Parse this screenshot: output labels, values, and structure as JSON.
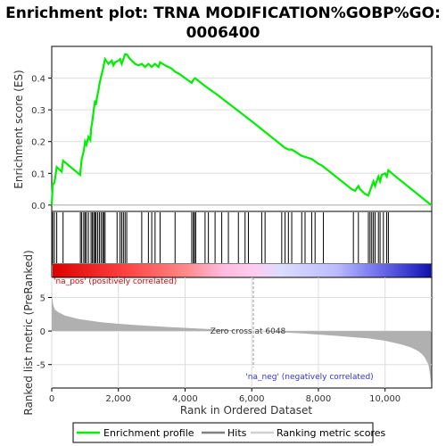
{
  "chart_data": {
    "type": "line",
    "title_line1": "Enrichment plot: TRNA MODIFICATION%GOBP%GO:",
    "title_line2": "0006400",
    "es_panel": {
      "ylabel": "Enrichment score (ES)",
      "xlim": [
        0,
        11400
      ],
      "ylim": [
        -0.02,
        0.5
      ],
      "yticks": [
        "0.0",
        "0.1",
        "0.2",
        "0.3",
        "0.4"
      ],
      "ytick_values": [
        0.0,
        0.1,
        0.2,
        0.3,
        0.4
      ],
      "series": [
        {
          "name": "Enrichment profile",
          "color": "#00ee00",
          "x": [
            0,
            30,
            80,
            150,
            300,
            340,
            850,
            900,
            960,
            1000,
            1040,
            1100,
            1160,
            1180,
            1220,
            1260,
            1300,
            1320,
            1360,
            1400,
            1430,
            1480,
            1530,
            1560,
            1600,
            1700,
            1800,
            1850,
            1900,
            2000,
            2050,
            2100,
            2150,
            2200,
            2250,
            2350,
            2500,
            2600,
            2700,
            2800,
            2900,
            3000,
            3100,
            3200,
            3250,
            3400,
            3600,
            3700,
            3800,
            4000,
            4200,
            4250,
            4300,
            4600,
            5000,
            6048,
            7000,
            7100,
            7200,
            7500,
            7800,
            8000,
            8100,
            9000,
            9100,
            9200,
            9250,
            9300,
            9400,
            9500,
            9600,
            9650,
            9700,
            9800,
            9850,
            9900,
            10000,
            10050,
            10100,
            10200,
            11380
          ],
          "y": [
            0.0,
            0.065,
            0.07,
            0.12,
            0.105,
            0.14,
            0.095,
            0.145,
            0.17,
            0.2,
            0.19,
            0.215,
            0.205,
            0.24,
            0.265,
            0.3,
            0.33,
            0.315,
            0.34,
            0.36,
            0.38,
            0.405,
            0.425,
            0.44,
            0.46,
            0.445,
            0.455,
            0.44,
            0.45,
            0.455,
            0.46,
            0.445,
            0.46,
            0.475,
            0.475,
            0.46,
            0.445,
            0.44,
            0.445,
            0.435,
            0.445,
            0.435,
            0.445,
            0.435,
            0.45,
            0.44,
            0.43,
            0.42,
            0.415,
            0.4,
            0.385,
            0.395,
            0.4,
            0.375,
            0.345,
            0.26,
            0.18,
            0.175,
            0.175,
            0.155,
            0.145,
            0.13,
            0.125,
            0.05,
            0.045,
            0.06,
            0.05,
            0.045,
            0.035,
            0.03,
            0.06,
            0.075,
            0.06,
            0.09,
            0.075,
            0.095,
            0.1,
            0.09,
            0.11,
            0.1,
            0.0
          ]
        }
      ]
    },
    "hits": {
      "name": "Hits",
      "color": "#000000",
      "positions": [
        30,
        80,
        150,
        340,
        860,
        900,
        960,
        1000,
        1040,
        1100,
        1180,
        1220,
        1260,
        1300,
        1330,
        1380,
        1430,
        1480,
        1530,
        1560,
        1600,
        1960,
        2050,
        2100,
        2150,
        2200,
        2250,
        2700,
        2900,
        3000,
        3100,
        3250,
        3700,
        4200,
        4250,
        4280,
        4320,
        4600,
        4700,
        4900,
        5100,
        5300,
        5600,
        5800,
        5900,
        6300,
        6400,
        6900,
        7000,
        7100,
        7200,
        7500,
        7600,
        7800,
        7900,
        8150,
        9050,
        9200,
        9500,
        9550,
        9600,
        9650,
        9700,
        9800,
        9850,
        9950,
        10050,
        10100
      ]
    },
    "rank_panel": {
      "ylabel": "Ranked list metric (PreRanked)",
      "xlabel": "Rank in Ordered Dataset",
      "xlim": [
        0,
        11400
      ],
      "ylim": [
        -8.5,
        8
      ],
      "yticks": [
        "5",
        "0",
        "-5"
      ],
      "ytick_values": [
        5,
        0,
        -5
      ],
      "xticks": [
        "0",
        "2,000",
        "4,000",
        "6,000",
        "8,000",
        "10,000"
      ],
      "xtick_values": [
        0,
        2000,
        4000,
        6000,
        8000,
        10000
      ],
      "metric_x": [
        0,
        10,
        50,
        100,
        200,
        400,
        800,
        1500,
        2500,
        3500,
        4500,
        5500,
        6048,
        6500,
        7500,
        8500,
        9500,
        10000,
        10500,
        10800,
        11000,
        11100,
        11200,
        11300,
        11350,
        11380
      ],
      "metric_y": [
        7.0,
        5.0,
        3.8,
        3.2,
        2.8,
        2.3,
        1.8,
        1.3,
        0.9,
        0.6,
        0.35,
        0.1,
        0.0,
        -0.1,
        -0.35,
        -0.7,
        -1.1,
        -1.45,
        -2.0,
        -2.5,
        -3.0,
        -3.4,
        -4.0,
        -5.0,
        -6.5,
        -8.0
      ],
      "pos_label": "'na_pos' (positively correlated)",
      "neg_label": "'na_neg' (negatively correlated)",
      "zero_cross_label": "Zero cross at 6048",
      "zero_cross": 6048,
      "fill_color": "#b0b0b0"
    },
    "legend": [
      {
        "label": "Enrichment profile",
        "color": "#00ee00",
        "kind": "line"
      },
      {
        "label": "Hits",
        "color": "#808080",
        "kind": "line"
      },
      {
        "label": "Ranking metric scores",
        "color": "#d0d0d0",
        "kind": "line"
      }
    ]
  }
}
